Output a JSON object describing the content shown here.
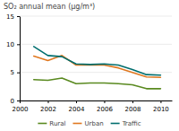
{
  "chart_data": {
    "type": "line",
    "title": "SO₂ annual mean (µg/m³)",
    "x": [
      2001,
      2002,
      2003,
      2004,
      2005,
      2006,
      2007,
      2008,
      2009,
      2010
    ],
    "series": [
      {
        "name": "Rural",
        "color": "#5a8a20",
        "values": [
          3.7,
          3.6,
          4.0,
          3.0,
          3.1,
          3.1,
          3.0,
          2.8,
          2.1,
          2.1
        ]
      },
      {
        "name": "Urban",
        "color": "#e07820",
        "values": [
          7.9,
          7.1,
          8.0,
          6.3,
          6.3,
          6.3,
          5.8,
          5.0,
          4.2,
          4.1
        ]
      },
      {
        "name": "Traffic",
        "color": "#006e6e",
        "values": [
          9.6,
          8.0,
          7.8,
          6.5,
          6.4,
          6.5,
          6.3,
          5.5,
          4.6,
          4.5
        ]
      }
    ],
    "xlim": [
      2000,
      2010.8
    ],
    "xticks": [
      2000,
      2002,
      2004,
      2006,
      2008,
      2010
    ],
    "ylim": [
      0,
      15
    ],
    "yticks": [
      0,
      5,
      10,
      15
    ],
    "grid": true,
    "legend": "bottom"
  }
}
